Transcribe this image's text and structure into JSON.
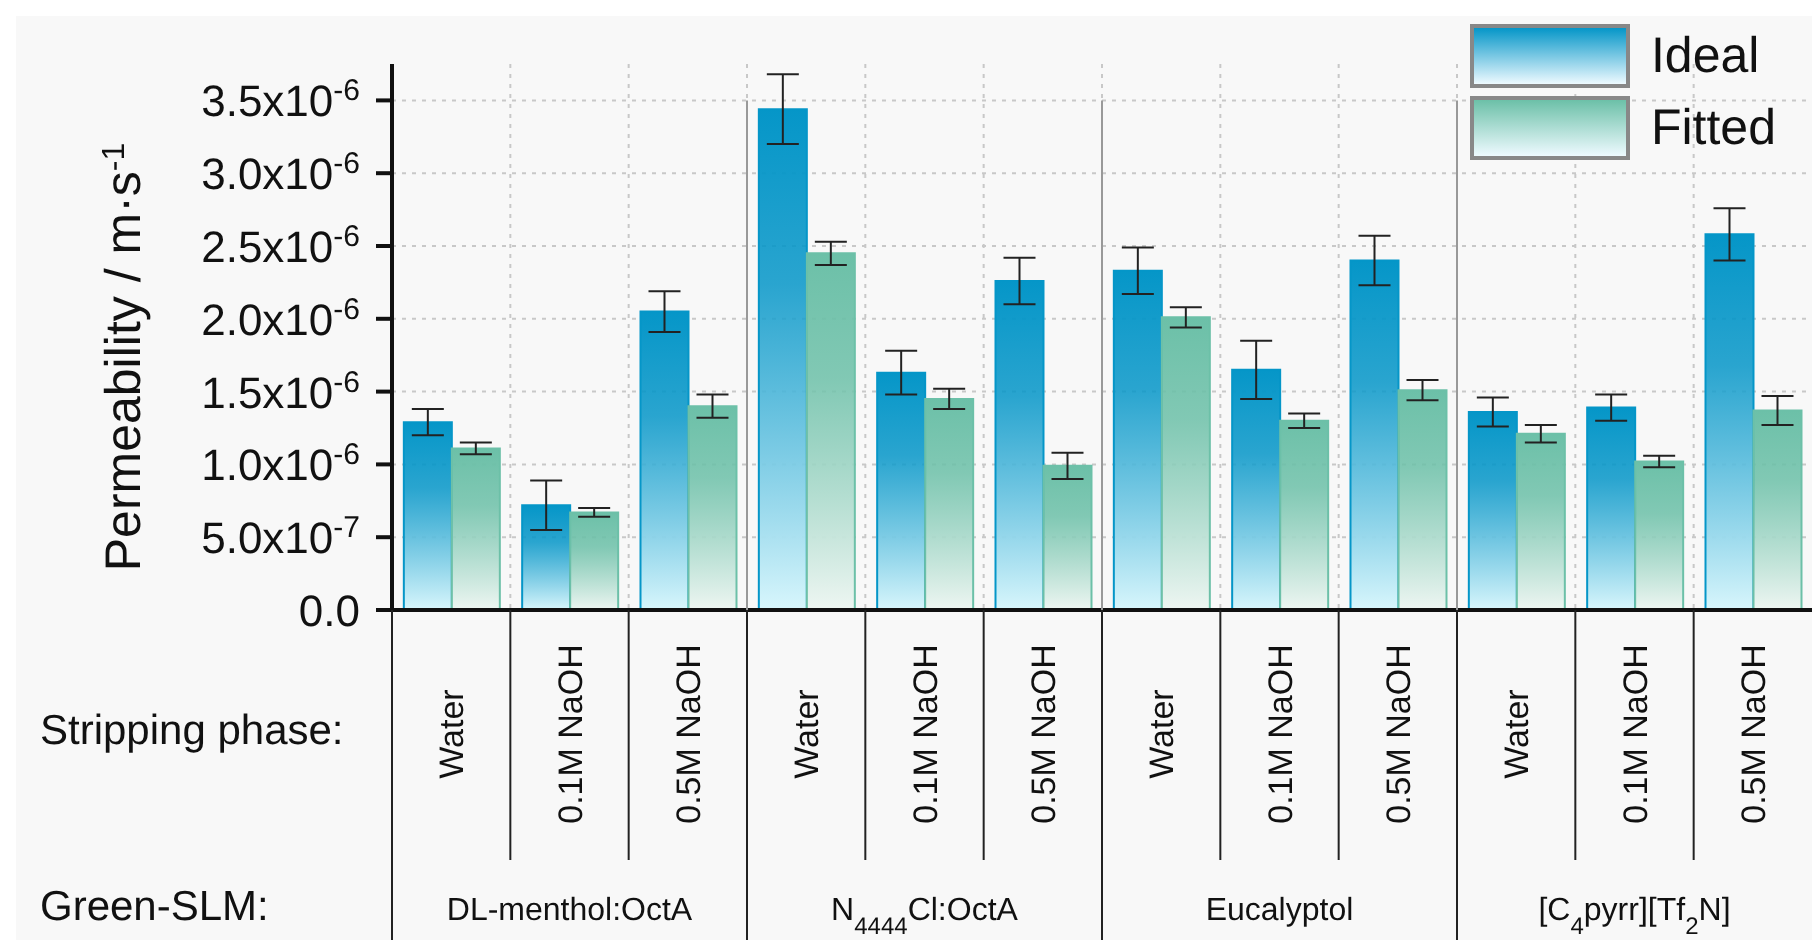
{
  "chart_data": {
    "type": "bar",
    "ylabel": "Permeability / m·s$^{-1}$",
    "xlabel": "Stripping phase:",
    "categories": [
      "Water",
      "0.1M NaOH",
      "0.5M NaOH",
      "Water",
      "0.1M NaOH",
      "0.5M NaOH",
      "Water",
      "0.1M NaOH",
      "0.5M NaOH",
      "Water",
      "0.1M NaOH",
      "0.5M NaOH"
    ],
    "series": [
      {
        "name": "Ideal",
        "color": "#0596c8",
        "values": [
          1.29e-06,
          7.2e-07,
          2.05e-06,
          3.44e-06,
          1.63e-06,
          2.26e-06,
          2.33e-06,
          1.65e-06,
          2.4e-06,
          1.36e-06,
          1.39e-06,
          2.58e-06
        ],
        "errors": [
          9e-08,
          1.7e-07,
          1.4e-07,
          2.4e-07,
          1.5e-07,
          1.6e-07,
          1.6e-07,
          2e-07,
          1.7e-07,
          1e-07,
          9e-08,
          1.8e-07
        ]
      },
      {
        "name": "Fitted",
        "color": "#6cc0a8",
        "values": [
          1.11e-06,
          6.7e-07,
          1.4e-06,
          2.45e-06,
          1.45e-06,
          9.9e-07,
          2.01e-06,
          1.3e-06,
          1.51e-06,
          1.21e-06,
          1.02e-06,
          1.37e-06
        ],
        "errors": [
          4e-08,
          3e-08,
          8e-08,
          8e-08,
          7e-08,
          9e-08,
          7e-08,
          5e-08,
          7e-08,
          6e-08,
          4e-08,
          1e-07
        ]
      }
    ],
    "ylim": [
      0,
      3.75e-06
    ],
    "yticks": [
      {
        "value": 0,
        "label": "0.0"
      },
      {
        "value": 5e-07,
        "label": "5.0x10$^{-7}$"
      },
      {
        "value": 1e-06,
        "label": "1.0x10$^{-6}$"
      },
      {
        "value": 1.5e-06,
        "label": "1.5x10$^{-6}$"
      },
      {
        "value": 2e-06,
        "label": "2.0x10$^{-6}$"
      },
      {
        "value": 2.5e-06,
        "label": "2.5x10$^{-6}$"
      },
      {
        "value": 3e-06,
        "label": "3.0x10$^{-6}$"
      },
      {
        "value": 3.5e-06,
        "label": "3.5x10$^{-6}$"
      }
    ],
    "annotations": [
      "Green-SLM:",
      "DL-menthol:OctA",
      "N$_{4444}$Cl:OctA",
      "Eucalyptol",
      "[C$_{4}$pyrr][Tf$_{2}$N]"
    ],
    "grid": true,
    "legend": "top right"
  }
}
